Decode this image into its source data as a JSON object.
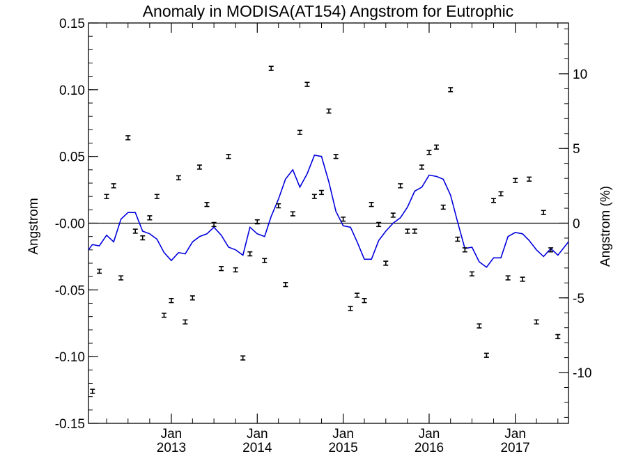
{
  "chart_data": {
    "type": "scatter",
    "title": "Anomaly in MODISA(AT154) Angstrom for Eutrophic",
    "ylabel": "Angstrom",
    "y2label": "Angstrom (%)",
    "ylim": [
      -0.15,
      0.15
    ],
    "y2lim": [
      -13.4,
      13.4
    ],
    "xlim": [
      "2012-01-15",
      "2017-08-15"
    ],
    "y_ticks": [
      "0.15",
      "0.10",
      "0.05",
      "-0.00",
      "-0.05",
      "-0.10",
      "-0.15"
    ],
    "y_tick_values": [
      0.15,
      0.1,
      0.05,
      0.0,
      -0.05,
      -0.1,
      -0.15
    ],
    "y2_ticks": [
      "10",
      "5",
      "0",
      "-5",
      "-10"
    ],
    "y2_tick_values": [
      10,
      5,
      0,
      -5,
      -10
    ],
    "x_ticks": [
      {
        "date": "2013-01-01",
        "month": "Jan",
        "year": "2013"
      },
      {
        "date": "2014-01-01",
        "month": "Jan",
        "year": "2014"
      },
      {
        "date": "2015-01-01",
        "month": "Jan",
        "year": "2015"
      },
      {
        "date": "2016-01-01",
        "month": "Jan",
        "year": "2016"
      },
      {
        "date": "2017-01-01",
        "month": "Jan",
        "year": "2017"
      }
    ],
    "zero_line": true,
    "grid": false,
    "points_color": "#000000",
    "line_color": "#0000dd",
    "series": [
      {
        "kind": "points_with_errorbars",
        "values": [
          [
            "2012-02-01",
            -0.126
          ],
          [
            "2012-03-01",
            -0.036
          ],
          [
            "2012-04-01",
            0.02
          ],
          [
            "2012-05-01",
            0.028
          ],
          [
            "2012-06-01",
            -0.041
          ],
          [
            "2012-07-01",
            0.064
          ],
          [
            "2012-08-01",
            -0.006
          ],
          [
            "2012-09-01",
            -0.011
          ],
          [
            "2012-10-01",
            0.004
          ],
          [
            "2012-11-01",
            0.02
          ],
          [
            "2012-12-01",
            -0.069
          ],
          [
            "2013-01-01",
            -0.058
          ],
          [
            "2013-02-01",
            0.034
          ],
          [
            "2013-03-01",
            -0.074
          ],
          [
            "2013-04-01",
            -0.056
          ],
          [
            "2013-05-01",
            0.042
          ],
          [
            "2013-06-01",
            0.014
          ],
          [
            "2013-07-01",
            -0.001
          ],
          [
            "2013-08-01",
            -0.034
          ],
          [
            "2013-09-01",
            0.05
          ],
          [
            "2013-10-01",
            -0.035
          ],
          [
            "2013-11-01",
            -0.101
          ],
          [
            "2013-12-01",
            -0.023
          ],
          [
            "2014-01-01",
            0.001
          ],
          [
            "2014-02-01",
            -0.028
          ],
          [
            "2014-03-01",
            0.116
          ],
          [
            "2014-04-01",
            0.013
          ],
          [
            "2014-05-01",
            -0.046
          ],
          [
            "2014-06-01",
            0.007
          ],
          [
            "2014-07-01",
            0.068
          ],
          [
            "2014-08-01",
            0.104
          ],
          [
            "2014-09-01",
            0.02
          ],
          [
            "2014-10-01",
            0.023
          ],
          [
            "2014-11-01",
            0.084
          ],
          [
            "2014-12-01",
            0.05
          ],
          [
            "2015-01-01",
            0.003
          ],
          [
            "2015-02-01",
            -0.064
          ],
          [
            "2015-03-01",
            -0.054
          ],
          [
            "2015-04-01",
            -0.058
          ],
          [
            "2015-05-01",
            0.014
          ],
          [
            "2015-06-01",
            -0.001
          ],
          [
            "2015-07-01",
            -0.03
          ],
          [
            "2015-08-01",
            0.006
          ],
          [
            "2015-09-01",
            0.028
          ],
          [
            "2015-10-01",
            -0.006
          ],
          [
            "2015-11-01",
            -0.006
          ],
          [
            "2015-12-01",
            0.042
          ],
          [
            "2016-01-01",
            0.053
          ],
          [
            "2016-02-01",
            0.057
          ],
          [
            "2016-03-01",
            0.012
          ],
          [
            "2016-04-01",
            0.1
          ],
          [
            "2016-05-01",
            -0.012
          ],
          [
            "2016-06-01",
            -0.02
          ],
          [
            "2016-07-01",
            -0.038
          ],
          [
            "2016-08-01",
            -0.077
          ],
          [
            "2016-09-01",
            -0.099
          ],
          [
            "2016-10-01",
            0.017
          ],
          [
            "2016-11-01",
            0.022
          ],
          [
            "2016-12-01",
            -0.041
          ],
          [
            "2017-01-01",
            0.032
          ],
          [
            "2017-02-01",
            -0.042
          ],
          [
            "2017-03-01",
            0.033
          ],
          [
            "2017-04-01",
            -0.074
          ],
          [
            "2017-05-01",
            0.008
          ],
          [
            "2017-06-01",
            -0.02
          ],
          [
            "2017-07-01",
            -0.085
          ]
        ],
        "error": 0.0015
      },
      {
        "kind": "line",
        "values": [
          [
            "2012-01-15",
            -0.02
          ],
          [
            "2012-02-01",
            -0.016
          ],
          [
            "2012-03-01",
            -0.017
          ],
          [
            "2012-04-01",
            -0.009
          ],
          [
            "2012-05-01",
            -0.014
          ],
          [
            "2012-06-01",
            0.003
          ],
          [
            "2012-07-01",
            0.008
          ],
          [
            "2012-08-01",
            0.008
          ],
          [
            "2012-09-01",
            -0.006
          ],
          [
            "2012-10-01",
            -0.008
          ],
          [
            "2012-11-01",
            -0.012
          ],
          [
            "2012-12-01",
            -0.022
          ],
          [
            "2013-01-01",
            -0.028
          ],
          [
            "2013-02-01",
            -0.022
          ],
          [
            "2013-03-01",
            -0.023
          ],
          [
            "2013-04-01",
            -0.014
          ],
          [
            "2013-05-01",
            -0.01
          ],
          [
            "2013-06-01",
            -0.008
          ],
          [
            "2013-07-01",
            -0.003
          ],
          [
            "2013-08-01",
            -0.009
          ],
          [
            "2013-09-01",
            -0.018
          ],
          [
            "2013-10-01",
            -0.02
          ],
          [
            "2013-11-01",
            -0.024
          ],
          [
            "2013-12-01",
            -0.003
          ],
          [
            "2014-01-01",
            -0.008
          ],
          [
            "2014-02-01",
            -0.01
          ],
          [
            "2014-03-01",
            0.005
          ],
          [
            "2014-04-01",
            0.018
          ],
          [
            "2014-05-01",
            0.033
          ],
          [
            "2014-06-01",
            0.04
          ],
          [
            "2014-07-01",
            0.027
          ],
          [
            "2014-08-01",
            0.037
          ],
          [
            "2014-09-01",
            0.051
          ],
          [
            "2014-10-01",
            0.05
          ],
          [
            "2014-11-01",
            0.031
          ],
          [
            "2014-12-01",
            0.009
          ],
          [
            "2015-01-01",
            -0.002
          ],
          [
            "2015-02-01",
            -0.003
          ],
          [
            "2015-03-01",
            -0.014
          ],
          [
            "2015-04-01",
            -0.027
          ],
          [
            "2015-05-01",
            -0.027
          ],
          [
            "2015-06-01",
            -0.013
          ],
          [
            "2015-07-01",
            -0.006
          ],
          [
            "2015-08-01",
            0.0
          ],
          [
            "2015-09-01",
            0.004
          ],
          [
            "2015-10-01",
            0.012
          ],
          [
            "2015-11-01",
            0.024
          ],
          [
            "2015-12-01",
            0.027
          ],
          [
            "2016-01-01",
            0.036
          ],
          [
            "2016-02-01",
            0.035
          ],
          [
            "2016-03-01",
            0.033
          ],
          [
            "2016-04-01",
            0.021
          ],
          [
            "2016-05-01",
            0.001
          ],
          [
            "2016-06-01",
            -0.019
          ],
          [
            "2016-07-01",
            -0.018
          ],
          [
            "2016-08-01",
            -0.029
          ],
          [
            "2016-09-01",
            -0.033
          ],
          [
            "2016-10-01",
            -0.026
          ],
          [
            "2016-11-01",
            -0.026
          ],
          [
            "2016-12-01",
            -0.01
          ],
          [
            "2017-01-01",
            -0.007
          ],
          [
            "2017-02-01",
            -0.008
          ],
          [
            "2017-03-01",
            -0.013
          ],
          [
            "2017-04-01",
            -0.02
          ],
          [
            "2017-05-01",
            -0.025
          ],
          [
            "2017-06-01",
            -0.019
          ],
          [
            "2017-07-01",
            -0.024
          ],
          [
            "2017-08-15",
            -0.014
          ]
        ]
      }
    ]
  }
}
